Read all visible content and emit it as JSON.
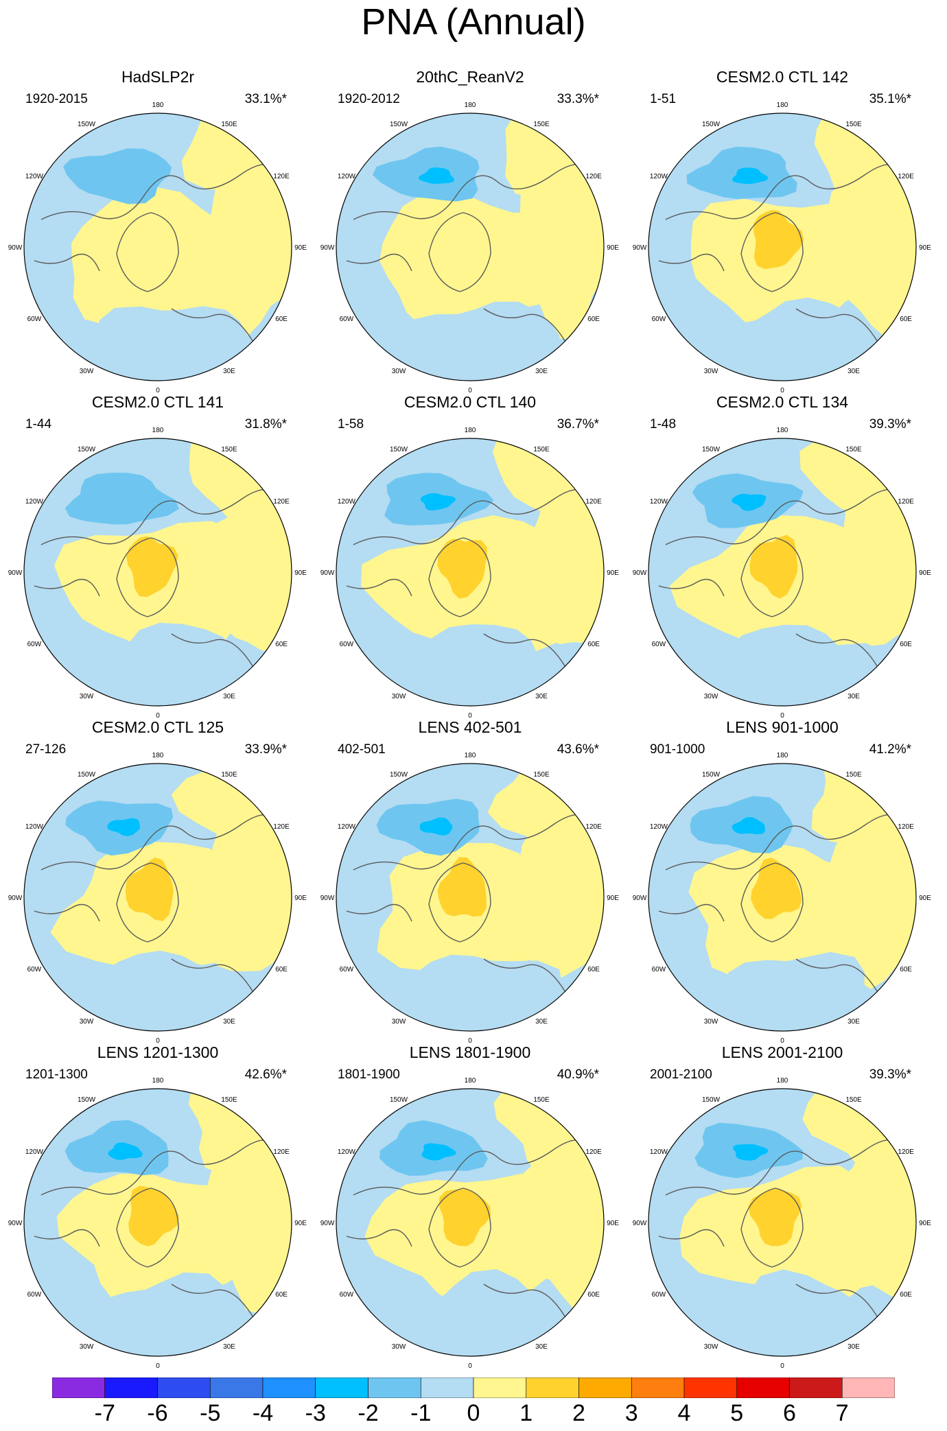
{
  "figure": {
    "title": "PNA (Annual)"
  },
  "lon_labels": [
    "180",
    "150E",
    "120E",
    "90E",
    "60E",
    "30E",
    "0",
    "30W",
    "60W",
    "90W",
    "120W",
    "150W"
  ],
  "panels": [
    {
      "title": "HadSLP2r",
      "period": "1920-2015",
      "variance": "33.1%*",
      "low_levels": 1,
      "high_levels": 0
    },
    {
      "title": "20thC_ReanV2",
      "period": "1920-2012",
      "variance": "33.3%*",
      "low_levels": 2,
      "high_levels": 0
    },
    {
      "title": "CESM2.0 CTL 142",
      "period": "1-51",
      "variance": "35.1%*",
      "low_levels": 2,
      "high_levels": 1
    },
    {
      "title": "CESM2.0 CTL 141",
      "period": "1-44",
      "variance": "31.8%*",
      "low_levels": 1,
      "high_levels": 1
    },
    {
      "title": "CESM2.0 CTL 140",
      "period": "1-58",
      "variance": "36.7%*",
      "low_levels": 2,
      "high_levels": 1
    },
    {
      "title": "CESM2.0 CTL 134",
      "period": "1-48",
      "variance": "39.3%*",
      "low_levels": 2,
      "high_levels": 1
    },
    {
      "title": "CESM2.0 CTL 125",
      "period": "27-126",
      "variance": "33.9%*",
      "low_levels": 2,
      "high_levels": 1
    },
    {
      "title": "LENS 402-501",
      "period": "402-501",
      "variance": "43.6%*",
      "low_levels": 2,
      "high_levels": 1
    },
    {
      "title": "LENS 901-1000",
      "period": "901-1000",
      "variance": "41.2%*",
      "low_levels": 2,
      "high_levels": 1
    },
    {
      "title": "LENS 1201-1300",
      "period": "1201-1300",
      "variance": "42.6%*",
      "low_levels": 2,
      "high_levels": 1
    },
    {
      "title": "LENS 1801-1900",
      "period": "1801-1900",
      "variance": "40.9%*",
      "low_levels": 2,
      "high_levels": 1
    },
    {
      "title": "LENS 2001-2100",
      "period": "2001-2100",
      "variance": "39.3%*",
      "low_levels": 2,
      "high_levels": 1
    }
  ],
  "colorbar": {
    "labels": [
      "-7",
      "-6",
      "-5",
      "-4",
      "-3",
      "-2",
      "-1",
      "0",
      "1",
      "2",
      "3",
      "4",
      "5",
      "6",
      "7"
    ],
    "colors": [
      "#8a2be2",
      "#1a1aff",
      "#2e4df0",
      "#3a78e8",
      "#1e90ff",
      "#00bfff",
      "#6ec6f0",
      "#b4dcf2",
      "#fff68f",
      "#ffd22e",
      "#ffaa00",
      "#ff7f0e",
      "#ff3300",
      "#e60000",
      "#cc1a1a",
      "#ffb6b6"
    ]
  }
}
